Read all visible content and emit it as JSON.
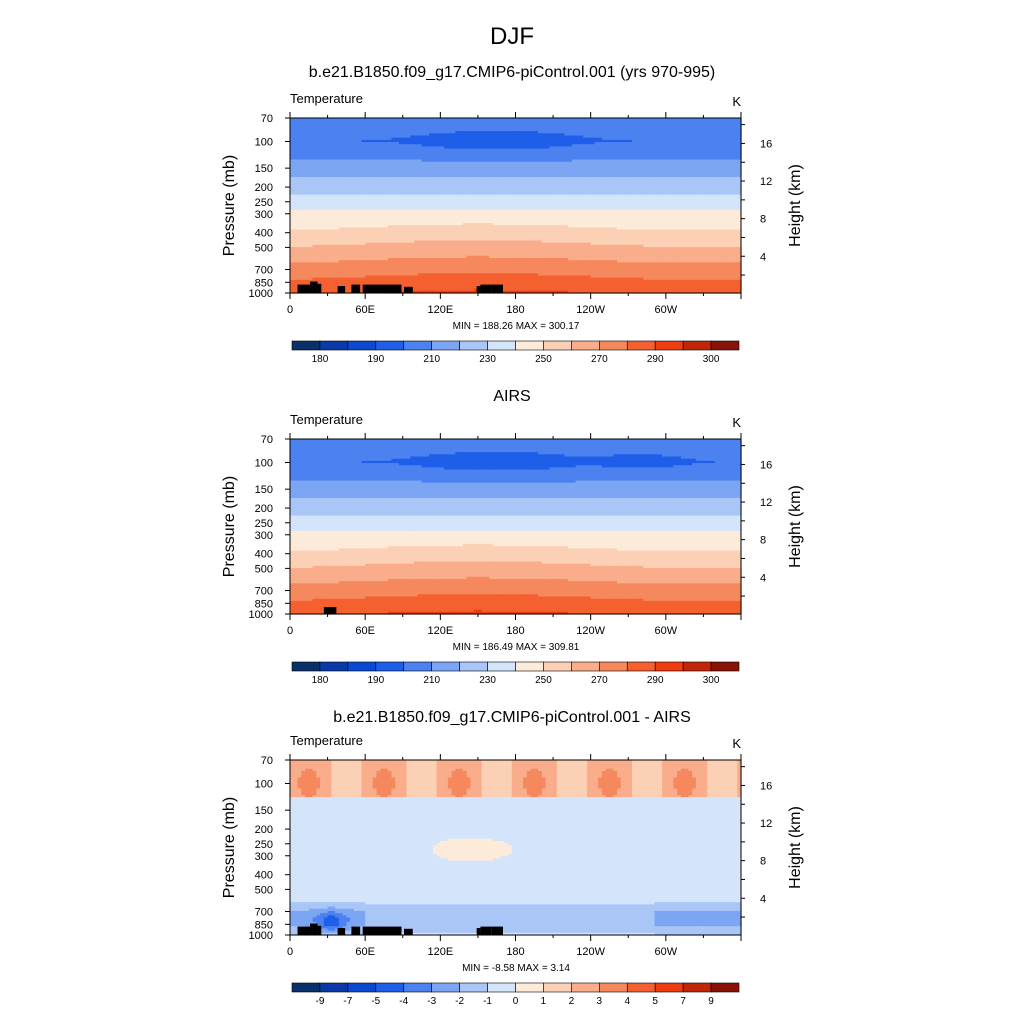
{
  "figure": {
    "title": "DJF"
  },
  "colors": {
    "temperature_fills": [
      "#08306b",
      "#0a3aa8",
      "#0b4ad0",
      "#1e5ee8",
      "#4c82f0",
      "#7ca6f4",
      "#a9c6f7",
      "#d4e4fb",
      "#fdebd9",
      "#fcd0b4",
      "#f9ad8b",
      "#f6885e",
      "#f4602f",
      "#ef3d0f",
      "#c32508",
      "#8a1308"
    ],
    "difference_fills": [
      "#08306b",
      "#0a3aa8",
      "#0b4ad0",
      "#1e5ee8",
      "#4c82f0",
      "#7ca6f4",
      "#a9c6f7",
      "#d4e4fb",
      "#fdebd9",
      "#fcd0b4",
      "#f9ad8b",
      "#f6885e",
      "#f4602f",
      "#ef3d0f",
      "#c32508",
      "#8a1308"
    ],
    "terrain": "#000000"
  },
  "chart_data": [
    {
      "type": "heatmap",
      "title": "b.e21.B1850.f09_g17.CMIP6-piControl.001 (yrs 970-995)",
      "variable_label": "Temperature",
      "units_label": "K",
      "ylabel": "Pressure (mb)",
      "ylabel_right": "Height (km)",
      "xticks": [
        "0",
        "60E",
        "120E",
        "180",
        "120W",
        "60W"
      ],
      "xtick_positions_deg": [
        0,
        60,
        120,
        180,
        240,
        300
      ],
      "xlim": [
        0,
        360
      ],
      "yticks": [
        "70",
        "100",
        "150",
        "200",
        "250",
        "300",
        "400",
        "500",
        "700",
        "850",
        "1000"
      ],
      "ytick_values": [
        70,
        100,
        150,
        200,
        250,
        300,
        400,
        500,
        700,
        850,
        1000
      ],
      "ylim": [
        70,
        1000
      ],
      "yscale": "log",
      "right_ticks": [
        "16",
        "12",
        "8",
        "4"
      ],
      "right_tick_values_km": [
        16,
        12,
        8,
        4
      ],
      "stats": "MIN = 188.26  MAX = 300.17",
      "min": 188.26,
      "max": 300.17,
      "colorbar_labels": [
        "180",
        "190",
        "210",
        "230",
        "250",
        "270",
        "290",
        "300"
      ],
      "contour_levels": [
        180,
        185,
        190,
        200,
        210,
        220,
        230,
        240,
        250,
        260,
        270,
        280,
        290,
        295,
        300
      ],
      "field": "temperature",
      "terrain": [
        [
          6,
          16,
          880
        ],
        [
          16,
          18,
          840
        ],
        [
          18,
          22,
          840
        ],
        [
          22,
          25,
          870
        ],
        [
          38,
          44,
          900
        ],
        [
          49,
          56,
          880
        ],
        [
          58,
          89,
          880
        ],
        [
          91,
          98,
          910
        ],
        [
          149,
          152,
          900
        ],
        [
          152,
          161,
          880
        ],
        [
          161,
          170,
          880
        ]
      ]
    },
    {
      "type": "heatmap",
      "title": "AIRS",
      "variable_label": "Temperature",
      "units_label": "K",
      "ylabel": "Pressure (mb)",
      "ylabel_right": "Height (km)",
      "xticks": [
        "0",
        "60E",
        "120E",
        "180",
        "120W",
        "60W"
      ],
      "xtick_positions_deg": [
        0,
        60,
        120,
        180,
        240,
        300
      ],
      "xlim": [
        0,
        360
      ],
      "yticks": [
        "70",
        "100",
        "150",
        "200",
        "250",
        "300",
        "400",
        "500",
        "700",
        "850",
        "1000"
      ],
      "ytick_values": [
        70,
        100,
        150,
        200,
        250,
        300,
        400,
        500,
        700,
        850,
        1000
      ],
      "ylim": [
        70,
        1000
      ],
      "yscale": "log",
      "right_ticks": [
        "16",
        "12",
        "8",
        "4"
      ],
      "right_tick_values_km": [
        16,
        12,
        8,
        4
      ],
      "stats": "MIN = 186.49  MAX = 309.81",
      "min": 186.49,
      "max": 309.81,
      "colorbar_labels": [
        "180",
        "190",
        "210",
        "230",
        "250",
        "270",
        "290",
        "300"
      ],
      "contour_levels": [
        180,
        185,
        190,
        200,
        210,
        220,
        230,
        240,
        250,
        260,
        270,
        280,
        290,
        295,
        300
      ],
      "field": "temperature_obs",
      "terrain": [
        [
          27,
          37,
          900
        ]
      ]
    },
    {
      "type": "heatmap",
      "title": "b.e21.B1850.f09_g17.CMIP6-piControl.001 - AIRS",
      "variable_label": "Temperature",
      "units_label": "K",
      "ylabel": "Pressure (mb)",
      "ylabel_right": "Height (km)",
      "xticks": [
        "0",
        "60E",
        "120E",
        "180",
        "120W",
        "60W"
      ],
      "xtick_positions_deg": [
        0,
        60,
        120,
        180,
        240,
        300
      ],
      "xlim": [
        0,
        360
      ],
      "yticks": [
        "70",
        "100",
        "150",
        "200",
        "250",
        "300",
        "400",
        "500",
        "700",
        "850",
        "1000"
      ],
      "ytick_values": [
        70,
        100,
        150,
        200,
        250,
        300,
        400,
        500,
        700,
        850,
        1000
      ],
      "ylim": [
        70,
        1000
      ],
      "yscale": "log",
      "right_ticks": [
        "16",
        "12",
        "8",
        "4"
      ],
      "right_tick_values_km": [
        16,
        12,
        8,
        4
      ],
      "stats": "MIN =  -8.58  MAX =   3.14",
      "min": -8.58,
      "max": 3.14,
      "colorbar_labels": [
        "-9",
        "-7",
        "-5",
        "-4",
        "-3",
        "-2",
        "-1",
        "0",
        "1",
        "2",
        "3",
        "4",
        "5",
        "7",
        "9"
      ],
      "contour_levels": [
        -9,
        -7,
        -5,
        -4,
        -3,
        -2,
        -1,
        0,
        1,
        2,
        3,
        4,
        5,
        7,
        9
      ],
      "field": "difference",
      "terrain": [
        [
          6,
          16,
          880
        ],
        [
          16,
          18,
          840
        ],
        [
          18,
          22,
          840
        ],
        [
          22,
          25,
          870
        ],
        [
          38,
          44,
          900
        ],
        [
          49,
          56,
          880
        ],
        [
          58,
          89,
          880
        ],
        [
          91,
          98,
          910
        ],
        [
          149,
          152,
          900
        ],
        [
          152,
          161,
          880
        ],
        [
          161,
          170,
          880
        ]
      ]
    }
  ]
}
